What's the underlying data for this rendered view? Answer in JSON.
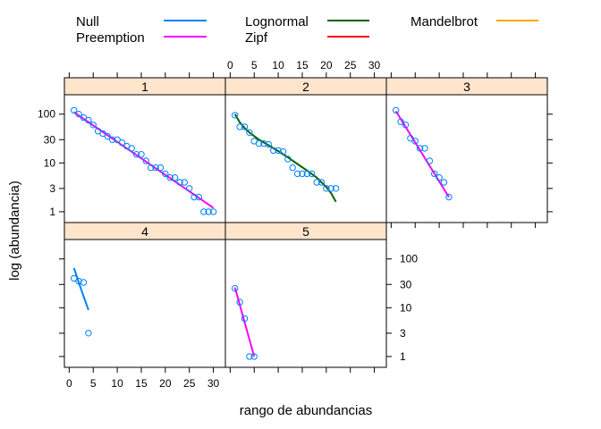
{
  "chart_data": {
    "type": "scatter",
    "xlabel": "rango de abundancias",
    "ylabel": "log (abundancia)",
    "xlim": [
      -1,
      32.5
    ],
    "ylim": [
      0.6,
      250
    ],
    "y_scale": "log",
    "x_ticks": [
      0,
      5,
      10,
      15,
      20,
      25,
      30
    ],
    "y_ticks": [
      1,
      3,
      10,
      30,
      100
    ],
    "y_tick_labels": [
      "1",
      "3",
      "10",
      "30",
      "100"
    ],
    "strip_color": "#ffe5cc",
    "point_color": "#0080ff",
    "legend": {
      "placement": "top",
      "entries": [
        {
          "name": "Null",
          "color": "#0080ff"
        },
        {
          "name": "Preemption",
          "color": "#ff00ff"
        },
        {
          "name": "Lognormal",
          "color": "#006400"
        },
        {
          "name": "Zipf",
          "color": "#ff0000"
        },
        {
          "name": "Mandelbrot",
          "color": "#ffa500"
        }
      ]
    },
    "panels": [
      {
        "label": "1",
        "points": [
          {
            "x": 1,
            "y": 120
          },
          {
            "x": 2,
            "y": 100
          },
          {
            "x": 3,
            "y": 85
          },
          {
            "x": 4,
            "y": 75
          },
          {
            "x": 5,
            "y": 60
          },
          {
            "x": 6,
            "y": 45
          },
          {
            "x": 7,
            "y": 40
          },
          {
            "x": 8,
            "y": 35
          },
          {
            "x": 9,
            "y": 30
          },
          {
            "x": 10,
            "y": 30
          },
          {
            "x": 11,
            "y": 26
          },
          {
            "x": 12,
            "y": 22
          },
          {
            "x": 13,
            "y": 20
          },
          {
            "x": 14,
            "y": 15
          },
          {
            "x": 15,
            "y": 15
          },
          {
            "x": 16,
            "y": 11
          },
          {
            "x": 17,
            "y": 8
          },
          {
            "x": 18,
            "y": 8
          },
          {
            "x": 19,
            "y": 8
          },
          {
            "x": 20,
            "y": 6
          },
          {
            "x": 21,
            "y": 5
          },
          {
            "x": 22,
            "y": 5
          },
          {
            "x": 23,
            "y": 4
          },
          {
            "x": 24,
            "y": 4
          },
          {
            "x": 25,
            "y": 3
          },
          {
            "x": 26,
            "y": 2
          },
          {
            "x": 27,
            "y": 2
          },
          {
            "x": 28,
            "y": 1
          },
          {
            "x": 29,
            "y": 1
          },
          {
            "x": 30,
            "y": 1
          }
        ],
        "lines": [
          {
            "model": "Preemption",
            "color": "#ff00ff",
            "x": [
              1,
              30
            ],
            "y": [
              110,
              1.2
            ]
          }
        ]
      },
      {
        "label": "2",
        "points": [
          {
            "x": 1,
            "y": 95
          },
          {
            "x": 2,
            "y": 55
          },
          {
            "x": 3,
            "y": 55
          },
          {
            "x": 4,
            "y": 42
          },
          {
            "x": 5,
            "y": 28
          },
          {
            "x": 6,
            "y": 25
          },
          {
            "x": 7,
            "y": 25
          },
          {
            "x": 8,
            "y": 24
          },
          {
            "x": 9,
            "y": 18
          },
          {
            "x": 10,
            "y": 18
          },
          {
            "x": 11,
            "y": 17
          },
          {
            "x": 12,
            "y": 12
          },
          {
            "x": 13,
            "y": 8
          },
          {
            "x": 14,
            "y": 6
          },
          {
            "x": 15,
            "y": 6
          },
          {
            "x": 16,
            "y": 6
          },
          {
            "x": 17,
            "y": 6
          },
          {
            "x": 18,
            "y": 4
          },
          {
            "x": 19,
            "y": 4
          },
          {
            "x": 20,
            "y": 3
          },
          {
            "x": 21,
            "y": 3
          },
          {
            "x": 22,
            "y": 3
          }
        ],
        "lines": [
          {
            "model": "Lognormal",
            "color": "#006400",
            "x": [
              1,
              2,
              3,
              4,
              6,
              8,
              10,
              12,
              14,
              16,
              18,
              19,
              20,
              21,
              22
            ],
            "y": [
              100,
              68,
              52,
              42,
              30,
              23,
              17.5,
              13,
              9.5,
              7,
              5,
              4,
              3.2,
              2.4,
              1.6
            ]
          }
        ]
      },
      {
        "label": "3",
        "points": [
          {
            "x": 1,
            "y": 120
          },
          {
            "x": 2,
            "y": 70
          },
          {
            "x": 3,
            "y": 60
          },
          {
            "x": 4,
            "y": 32
          },
          {
            "x": 5,
            "y": 28
          },
          {
            "x": 6,
            "y": 20
          },
          {
            "x": 7,
            "y": 20
          },
          {
            "x": 8,
            "y": 11
          },
          {
            "x": 9,
            "y": 6
          },
          {
            "x": 10,
            "y": 5
          },
          {
            "x": 11,
            "y": 4
          },
          {
            "x": 12,
            "y": 2
          }
        ],
        "lines": [
          {
            "model": "Preemption",
            "color": "#ff00ff",
            "x": [
              1,
              12
            ],
            "y": [
              115,
              2
            ]
          }
        ]
      },
      {
        "label": "4",
        "points": [
          {
            "x": 1,
            "y": 40
          },
          {
            "x": 2,
            "y": 35
          },
          {
            "x": 3,
            "y": 33
          },
          {
            "x": 4,
            "y": 3
          }
        ],
        "lines": [
          {
            "model": "Null",
            "color": "#0080ff",
            "x": [
              1,
              2,
              3,
              4
            ],
            "y": [
              65,
              33,
              17,
              9
            ]
          }
        ]
      },
      {
        "label": "5",
        "points": [
          {
            "x": 1,
            "y": 25
          },
          {
            "x": 2,
            "y": 13
          },
          {
            "x": 3,
            "y": 6
          },
          {
            "x": 4,
            "y": 1
          },
          {
            "x": 5,
            "y": 1
          }
        ],
        "lines": [
          {
            "model": "Preemption",
            "color": "#ff00ff",
            "x": [
              1,
              5
            ],
            "y": [
              26,
              1
            ]
          }
        ]
      }
    ]
  }
}
